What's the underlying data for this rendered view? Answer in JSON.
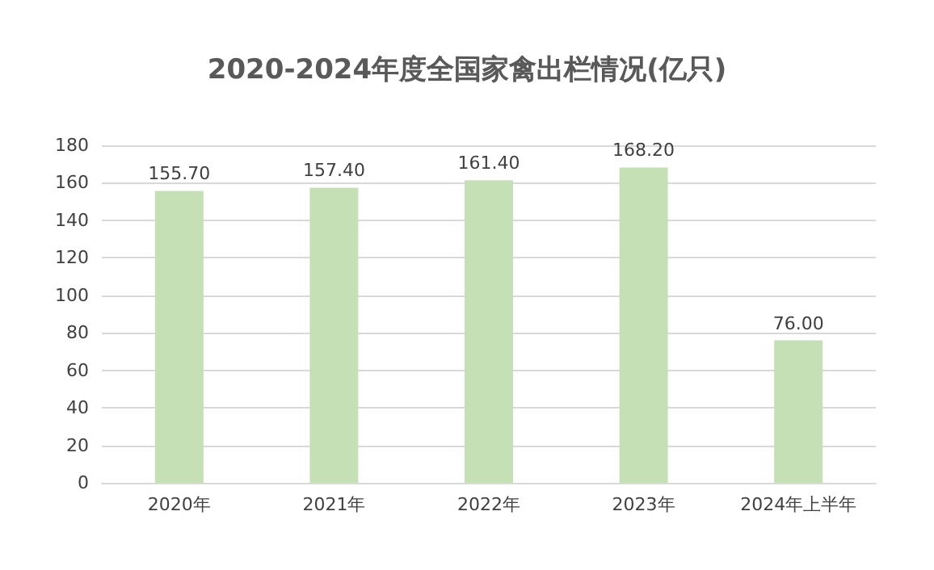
{
  "chart_data": {
    "type": "bar",
    "title": "2020-2024年度全国家禽出栏情况(亿只)",
    "categories": [
      "2020年",
      "2021年",
      "2022年",
      "2023年",
      "2024年上半年"
    ],
    "values": [
      155.7,
      157.4,
      161.4,
      168.2,
      76.0
    ],
    "value_labels": [
      "155.70",
      "157.40",
      "161.40",
      "168.20",
      "76.00"
    ],
    "color": "#c5e0b4",
    "ylim": [
      0,
      180
    ],
    "yticks": [
      0,
      20,
      40,
      60,
      80,
      100,
      120,
      140,
      160,
      180
    ],
    "grid": "y"
  }
}
